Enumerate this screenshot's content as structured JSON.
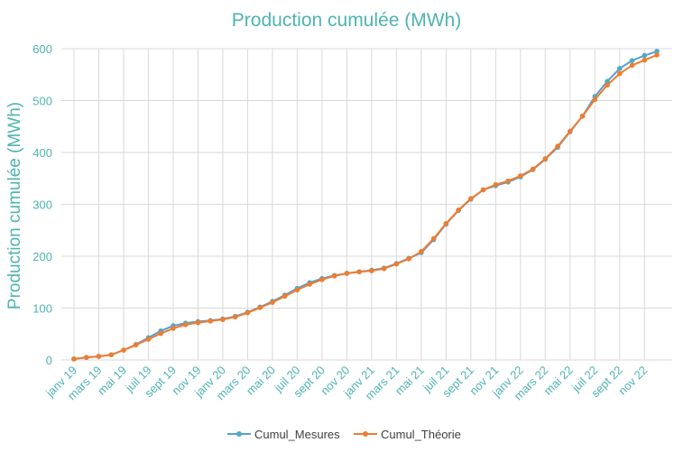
{
  "chart_data": {
    "type": "line",
    "title": "Production cumulée (MWh)",
    "xlabel": "",
    "ylabel": "Production cumulée (MWh)",
    "ylim": [
      0,
      600
    ],
    "yticks": [
      0,
      100,
      200,
      300,
      400,
      500,
      600
    ],
    "grid": true,
    "legend_position": "bottom",
    "x_tick_labels": [
      "janv 19",
      "mars 19",
      "mai 19",
      "juil 19",
      "sept 19",
      "nov 19",
      "janv 20",
      "mars 20",
      "mai 20",
      "juil 20",
      "sept 20",
      "nov 20",
      "janv 21",
      "mars 21",
      "mai 21",
      "juil 21",
      "sept 21",
      "nov 21",
      "janv 22",
      "mars 22",
      "mai 22",
      "juil 22",
      "sept 22",
      "nov 22"
    ],
    "x_count": 48,
    "series": [
      {
        "name": "Cumul_Mesures",
        "color": "#5b9bd5",
        "marker_color": "#4bacc6",
        "values": [
          2,
          5,
          7,
          10,
          19,
          30,
          43,
          56,
          66,
          71,
          74,
          76,
          79,
          84,
          92,
          102,
          113,
          125,
          138,
          149,
          157,
          163,
          167,
          170,
          173,
          177,
          186,
          196,
          207,
          232,
          262,
          288,
          310,
          328,
          336,
          343,
          353,
          367,
          387,
          410,
          440,
          470,
          508,
          537,
          562,
          577,
          587,
          595
        ]
      },
      {
        "name": "Cumul_Théorie",
        "color": "#ed7d31",
        "marker_color": "#ed7d31",
        "values": [
          2,
          5,
          7,
          10,
          19,
          29,
          40,
          51,
          61,
          68,
          72,
          75,
          78,
          83,
          91,
          101,
          111,
          123,
          135,
          146,
          155,
          162,
          167,
          170,
          172,
          176,
          185,
          195,
          209,
          234,
          263,
          289,
          311,
          328,
          338,
          345,
          355,
          368,
          388,
          412,
          441,
          470,
          502,
          530,
          552,
          568,
          578,
          588
        ]
      }
    ]
  }
}
